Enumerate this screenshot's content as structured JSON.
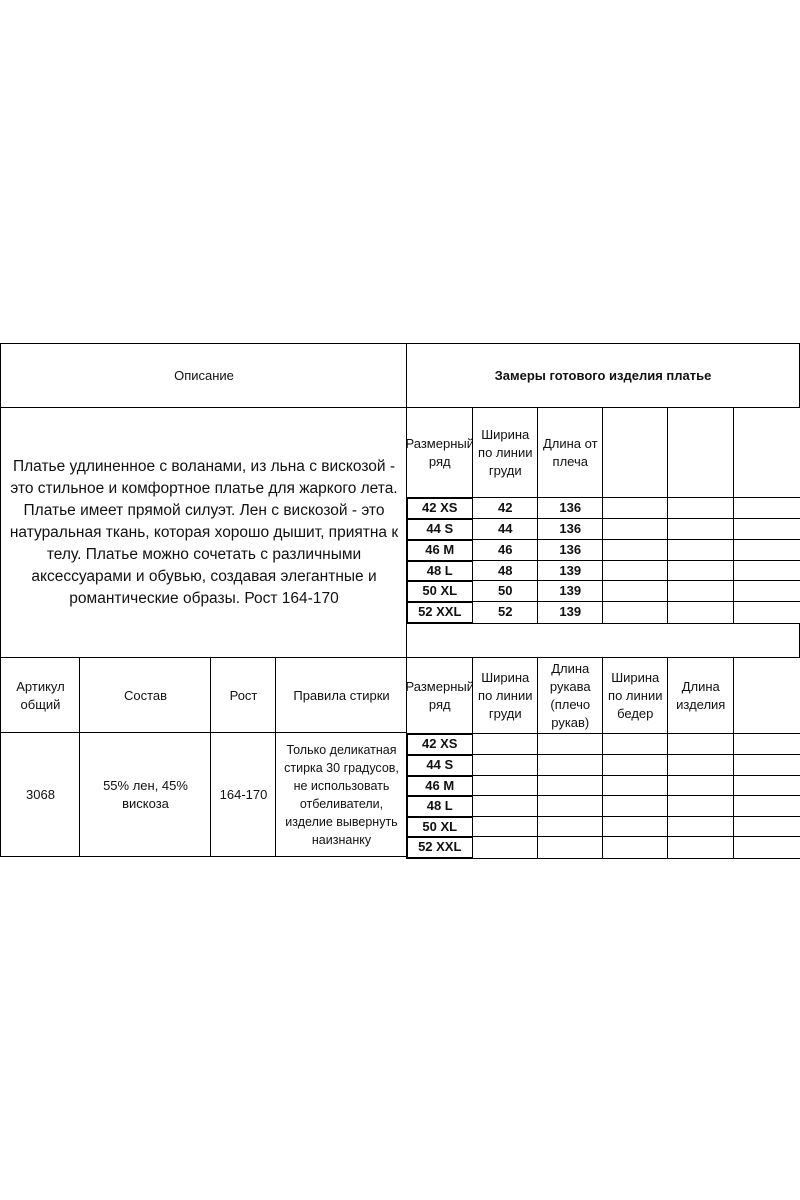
{
  "header": {
    "description_title": "Описание",
    "measurements_title": "Замеры готового изделия платье"
  },
  "description": "Платье удлиненное с воланами, из льна с вискозой - это стильное и комфортное платье для жаркого лета. Платье имеет прямой силуэт.  Лен с вискозой - это натуральная ткань, которая хорошо дышит, приятна к телу. Платье  можно сочетать с различными аксессуарами и обувью, создавая элегантные и романтические образы.  Рост 164-170",
  "upper_table": {
    "headers": [
      "Размерный ряд",
      "Ширина по линии груди",
      "Длина от плеча",
      "",
      "",
      ""
    ],
    "rows": [
      [
        "42 XS",
        "42",
        "136",
        "",
        "",
        ""
      ],
      [
        "44 S",
        "44",
        "136",
        "",
        "",
        ""
      ],
      [
        "46 M",
        "46",
        "136",
        "",
        "",
        ""
      ],
      [
        "48 L",
        "48",
        "139",
        "",
        "",
        ""
      ],
      [
        "50 XL",
        "50",
        "139",
        "",
        "",
        ""
      ],
      [
        "52 XXL",
        "52",
        "139",
        "",
        "",
        ""
      ]
    ]
  },
  "product": {
    "headers": [
      "Артикул общий",
      "Состав",
      "Рост",
      "Правила стирки"
    ],
    "article": "3068",
    "composition": "55% лен, 45% вискоза",
    "height": "164-170",
    "washing": "Только деликатная стирка 30 градусов, не использовать отбеливатели, изделие вывернуть наизнанку"
  },
  "lower_table": {
    "headers": [
      "Размерный ряд",
      "Ширина по линии груди",
      "Длина рукава (плечо рукав)",
      "Ширина по линии бедер",
      "Длина изделия",
      ""
    ],
    "rows": [
      [
        "42 XS",
        "",
        "",
        "",
        "",
        ""
      ],
      [
        "44 S",
        "",
        "",
        "",
        "",
        ""
      ],
      [
        "46 M",
        "",
        "",
        "",
        "",
        ""
      ],
      [
        "48 L",
        "",
        "",
        "",
        "",
        ""
      ],
      [
        "50 XL",
        "",
        "",
        "",
        "",
        ""
      ],
      [
        "52 XXL",
        "",
        "",
        "",
        "",
        ""
      ]
    ]
  }
}
